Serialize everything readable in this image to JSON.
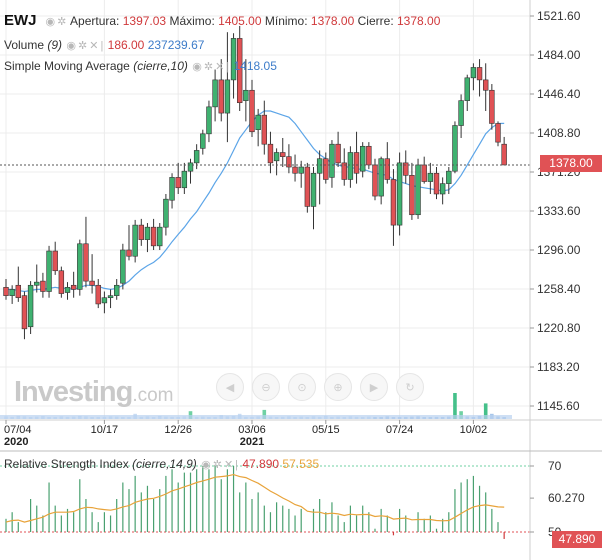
{
  "header": {
    "symbol": "EWJ",
    "open_label": "Apertura:",
    "open_value": "1397.03",
    "high_label": "Máximo:",
    "high_value": "1405.00",
    "low_label": "Mínimo:",
    "low_value": "1378.00",
    "close_label": "Cierre:",
    "close_value": "1378.00",
    "volume_label": "Volume",
    "volume_param": "(9)",
    "volume_value1": "186.00",
    "volume_value2": "237239.67",
    "sma_label": "Simple Moving Average",
    "sma_param": "(cierre,10)",
    "sma_value": "1418.05",
    "rsi_label": "Relative Strength Index",
    "rsi_param": "(cierre,14,9)",
    "rsi_value1": "47.890",
    "rsi_value2": "57.535"
  },
  "icons": [
    "eye-icon",
    "gear-icon",
    "close-icon"
  ],
  "nav_buttons": [
    "scroll-left-icon",
    "zoom-out-icon",
    "zoom-reset-icon",
    "zoom-in-icon",
    "scroll-right-icon",
    "reset-icon"
  ],
  "logo": {
    "main": "Investing",
    "suffix": ".com"
  },
  "current_price_tag": "1378.00",
  "rsi_current_tag": "47.890",
  "chart_data": [
    {
      "type": "candlestick",
      "yticks": [
        "1521.60",
        "1484.00",
        "1446.40",
        "1408.80",
        "1371.20",
        "1333.60",
        "1296.00",
        "1258.40",
        "1220.80",
        "1183.20",
        "1145.60"
      ],
      "ytick_values": [
        1521.6,
        1484.0,
        1446.4,
        1408.8,
        1371.2,
        1333.6,
        1296.0,
        1258.4,
        1220.8,
        1183.2,
        1145.6
      ],
      "ylim": [
        1127.0,
        1530.0
      ],
      "xticks": [
        {
          "label": "07/04",
          "sub": "2020",
          "index": 0
        },
        {
          "label": "10/17",
          "sub": "",
          "index": 16
        },
        {
          "label": "12/26",
          "sub": "",
          "index": 28
        },
        {
          "label": "03/06",
          "sub": "2021",
          "index": 40
        },
        {
          "label": "05/15",
          "sub": "",
          "index": 52
        },
        {
          "label": "07/24",
          "sub": "",
          "index": 64
        },
        {
          "label": "10/02",
          "sub": "",
          "index": 76
        }
      ],
      "last_price": 1378.0,
      "candles": [
        [
          1260,
          1268,
          1248,
          1252
        ],
        [
          1252,
          1262,
          1244,
          1258
        ],
        [
          1262,
          1280,
          1246,
          1250
        ],
        [
          1252,
          1256,
          1210,
          1220
        ],
        [
          1222,
          1266,
          1215,
          1262
        ],
        [
          1262,
          1282,
          1255,
          1265
        ],
        [
          1266,
          1274,
          1250,
          1256
        ],
        [
          1256,
          1300,
          1250,
          1295
        ],
        [
          1295,
          1304,
          1272,
          1276
        ],
        [
          1276,
          1280,
          1250,
          1254
        ],
        [
          1255,
          1265,
          1248,
          1260
        ],
        [
          1262,
          1275,
          1250,
          1258
        ],
        [
          1258,
          1306,
          1252,
          1302
        ],
        [
          1302,
          1328,
          1260,
          1266
        ],
        [
          1266,
          1292,
          1254,
          1262
        ],
        [
          1262,
          1268,
          1240,
          1244
        ],
        [
          1245,
          1256,
          1235,
          1250
        ],
        [
          1250,
          1258,
          1240,
          1252
        ],
        [
          1252,
          1268,
          1248,
          1262
        ],
        [
          1264,
          1302,
          1258,
          1296
        ],
        [
          1296,
          1320,
          1286,
          1290
        ],
        [
          1290,
          1325,
          1284,
          1320
        ],
        [
          1320,
          1326,
          1300,
          1306
        ],
        [
          1306,
          1322,
          1294,
          1318
        ],
        [
          1318,
          1326,
          1296,
          1300
        ],
        [
          1300,
          1322,
          1296,
          1318
        ],
        [
          1318,
          1350,
          1310,
          1345
        ],
        [
          1344,
          1370,
          1336,
          1366
        ],
        [
          1366,
          1380,
          1350,
          1356
        ],
        [
          1356,
          1380,
          1350,
          1372
        ],
        [
          1372,
          1384,
          1360,
          1380
        ],
        [
          1380,
          1398,
          1374,
          1392
        ],
        [
          1394,
          1412,
          1388,
          1408
        ],
        [
          1408,
          1440,
          1400,
          1434
        ],
        [
          1434,
          1470,
          1420,
          1460
        ],
        [
          1460,
          1480,
          1420,
          1428
        ],
        [
          1428,
          1506,
          1400,
          1460
        ],
        [
          1460,
          1505,
          1442,
          1500
        ],
        [
          1500,
          1512,
          1430,
          1438
        ],
        [
          1440,
          1480,
          1420,
          1450
        ],
        [
          1450,
          1460,
          1405,
          1410
        ],
        [
          1412,
          1432,
          1396,
          1426
        ],
        [
          1426,
          1440,
          1388,
          1398
        ],
        [
          1398,
          1410,
          1370,
          1380
        ],
        [
          1382,
          1394,
          1368,
          1390
        ],
        [
          1390,
          1404,
          1376,
          1386
        ],
        [
          1386,
          1398,
          1370,
          1376
        ],
        [
          1376,
          1388,
          1362,
          1370
        ],
        [
          1370,
          1382,
          1356,
          1376
        ],
        [
          1376,
          1380,
          1332,
          1338
        ],
        [
          1338,
          1376,
          1316,
          1370
        ],
        [
          1370,
          1392,
          1340,
          1384
        ],
        [
          1384,
          1390,
          1360,
          1364
        ],
        [
          1366,
          1402,
          1356,
          1398
        ],
        [
          1398,
          1410,
          1376,
          1380
        ],
        [
          1380,
          1394,
          1358,
          1364
        ],
        [
          1364,
          1396,
          1356,
          1390
        ],
        [
          1390,
          1410,
          1360,
          1370
        ],
        [
          1372,
          1400,
          1366,
          1396
        ],
        [
          1396,
          1400,
          1374,
          1378
        ],
        [
          1378,
          1384,
          1344,
          1348
        ],
        [
          1348,
          1386,
          1340,
          1384
        ],
        [
          1384,
          1400,
          1360,
          1364
        ],
        [
          1364,
          1374,
          1300,
          1320
        ],
        [
          1320,
          1390,
          1310,
          1380
        ],
        [
          1380,
          1392,
          1360,
          1368
        ],
        [
          1368,
          1380,
          1325,
          1330
        ],
        [
          1330,
          1384,
          1326,
          1378
        ],
        [
          1378,
          1386,
          1360,
          1362
        ],
        [
          1362,
          1380,
          1350,
          1370
        ],
        [
          1370,
          1376,
          1345,
          1350
        ],
        [
          1350,
          1366,
          1340,
          1360
        ],
        [
          1360,
          1376,
          1350,
          1372
        ],
        [
          1372,
          1420,
          1370,
          1416
        ],
        [
          1416,
          1446,
          1404,
          1440
        ],
        [
          1440,
          1465,
          1430,
          1462
        ],
        [
          1462,
          1476,
          1450,
          1472
        ],
        [
          1472,
          1480,
          1444,
          1460
        ],
        [
          1460,
          1476,
          1430,
          1450
        ],
        [
          1450,
          1456,
          1412,
          1418
        ],
        [
          1418,
          1420,
          1396,
          1400
        ],
        [
          1398,
          1405,
          1378,
          1378
        ]
      ],
      "sma10": [
        1258,
        1258,
        1257,
        1256,
        1257,
        1258,
        1258,
        1259,
        1260,
        1259,
        1259,
        1258,
        1260,
        1262,
        1262,
        1261,
        1259,
        1258,
        1259,
        1262,
        1266,
        1272,
        1277,
        1281,
        1284,
        1289,
        1296,
        1304,
        1311,
        1318,
        1326,
        1333,
        1342,
        1351,
        1361,
        1370,
        1380,
        1392,
        1404,
        1412,
        1420,
        1426,
        1430,
        1430,
        1428,
        1426,
        1424,
        1418,
        1410,
        1402,
        1394,
        1388,
        1384,
        1380,
        1378,
        1376,
        1376,
        1374,
        1374,
        1372,
        1370,
        1369,
        1368,
        1364,
        1362,
        1360,
        1358,
        1357,
        1356,
        1355,
        1354,
        1353,
        1354,
        1360,
        1368,
        1378,
        1388,
        1398,
        1408,
        1414,
        1418,
        1418.05
      ],
      "volume": [
        0.1,
        0.08,
        0.12,
        0.1,
        0.06,
        0.09,
        0.11,
        0.05,
        0.07,
        0.1,
        0.08,
        0.09,
        0.12,
        0.1,
        0.06,
        0.07,
        0.08,
        0.1,
        0.09,
        0.07,
        0.06,
        0.2,
        0.08,
        0.1,
        0.07,
        0.12,
        0.09,
        0.08,
        0.06,
        0.1,
        0.3,
        0.08,
        0.09,
        0.05,
        0.07,
        0.15,
        0.1,
        0.12,
        0.2,
        0.08,
        0.06,
        0.1,
        0.35,
        0.09,
        0.07,
        0.08,
        0.1,
        0.06,
        0.09,
        0.07,
        0.1,
        0.08,
        0.12,
        0.07,
        0.09,
        0.06,
        0.1,
        0.08,
        0.07,
        0.09,
        0.06,
        0.08,
        0.1,
        0.07,
        0.05,
        0.08,
        0.09,
        0.1,
        0.07,
        0.06,
        0.08,
        0.07,
        0.09,
        1.0,
        0.3,
        0.1,
        0.08,
        0.12,
        0.6,
        0.2,
        0.1,
        0.05
      ]
    },
    {
      "type": "rsi",
      "yticks": [
        "70",
        "60.270",
        "50"
      ],
      "ytick_values": [
        70,
        60.27,
        50
      ],
      "ylim": [
        45,
        73
      ],
      "rsi_hist": [
        54,
        56,
        53,
        50,
        60,
        58,
        55,
        65,
        58,
        55,
        57,
        56,
        66,
        60,
        56,
        53,
        56,
        55,
        60,
        65,
        63,
        67,
        62,
        64,
        60,
        63,
        67,
        69,
        65,
        68,
        68,
        69,
        70,
        69,
        70,
        66,
        69,
        70,
        62,
        65,
        60,
        62,
        58,
        56,
        59,
        58,
        57,
        55,
        57,
        50,
        57,
        60,
        56,
        59,
        55,
        53,
        58,
        55,
        58,
        56,
        51,
        57,
        55,
        49,
        57,
        55,
        50,
        56,
        54,
        55,
        51,
        54,
        56,
        63,
        65,
        66,
        67,
        64,
        62,
        57,
        53,
        47.89
      ],
      "rsi_ma": [
        53,
        53.5,
        53.6,
        53,
        53.5,
        54,
        54.5,
        55.5,
        56,
        56,
        56,
        56.2,
        57,
        57.5,
        57.4,
        57,
        56.8,
        56.6,
        57,
        57.6,
        58,
        59,
        59.5,
        60,
        60.2,
        60.8,
        61.5,
        62.5,
        63,
        63.7,
        64.3,
        65,
        65.5,
        66,
        66.6,
        66.8,
        67,
        67.4,
        66.8,
        66.5,
        65.6,
        64.8,
        63.6,
        62.4,
        61.4,
        60.3,
        59.4,
        58.3,
        57.7,
        56.3,
        56,
        56,
        55.5,
        55.7,
        55.5,
        55,
        55.4,
        55.2,
        55.3,
        55.3,
        54.7,
        54.9,
        54.7,
        53.9,
        54.1,
        54.2,
        53.7,
        53.8,
        53.8,
        53.8,
        53.5,
        53.4,
        53.5,
        54.5,
        55.6,
        56.7,
        57.6,
        58,
        58.2,
        57.9,
        57.6,
        57.535
      ]
    }
  ]
}
